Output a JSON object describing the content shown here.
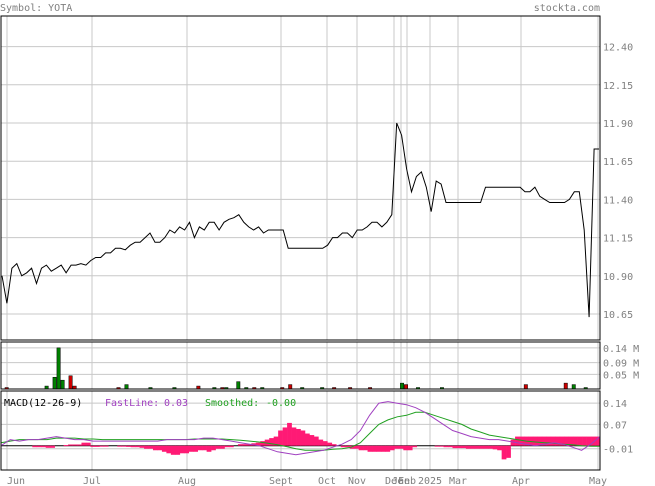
{
  "header": {
    "symbol_text": "Symbol: YOTA",
    "site": "stockta.com"
  },
  "colors": {
    "price_line": "#000000",
    "grid": "#c8c8c8",
    "frame": "#000000",
    "vol_up": "#008000",
    "vol_down": "#cc0000",
    "macd_fast": "#a040c0",
    "macd_smooth": "#20a020",
    "macd_hist": "#ff1a75"
  },
  "chart_data": [
    {
      "type": "line",
      "title": "",
      "x_tick_labels": [
        "Jun",
        "Jul",
        "Aug",
        "Sept",
        "Oct",
        "Nov",
        "Dec",
        "Jan",
        "Feb",
        "2025",
        "Mar",
        "Apr",
        "May"
      ],
      "y_ticks": [
        "12.40",
        "12.15",
        "11.90",
        "11.65",
        "11.40",
        "11.15",
        "10.90",
        "10.65"
      ],
      "ylim": [
        10.48,
        12.6
      ],
      "grid": true,
      "series": [
        {
          "values": [
            10.9,
            10.72,
            10.95,
            10.98,
            10.9,
            10.92,
            10.95,
            10.85,
            10.95,
            10.97,
            10.93,
            10.95,
            10.97,
            10.92,
            10.97,
            10.97,
            10.98,
            10.97,
            11,
            11.02,
            11.02,
            11.05,
            11.05,
            11.08,
            11.08,
            11.07,
            11.1,
            11.12,
            11.12,
            11.15,
            11.18,
            11.12,
            11.12,
            11.15,
            11.2,
            11.18,
            11.22,
            11.2,
            11.25,
            11.15,
            11.22,
            11.2,
            11.25,
            11.25,
            11.2,
            11.25,
            11.27,
            11.28,
            11.3,
            11.25,
            11.22,
            11.2,
            11.22,
            11.18,
            11.2,
            11.2,
            11.2,
            11.2,
            11.08,
            11.08,
            11.08,
            11.08,
            11.08,
            11.08,
            11.08,
            11.08,
            11.1,
            11.15,
            11.15,
            11.18,
            11.18,
            11.15,
            11.2,
            11.2,
            11.22,
            11.25,
            11.25,
            11.22,
            11.25,
            11.3,
            11.9,
            11.82,
            11.6,
            11.45,
            11.55,
            11.58,
            11.48,
            11.32,
            11.52,
            11.5,
            11.38,
            11.38,
            11.38,
            11.38,
            11.38,
            11.38,
            11.38,
            11.38,
            11.48,
            11.48,
            11.48,
            11.48,
            11.48,
            11.48,
            11.48,
            11.48,
            11.45,
            11.45,
            11.48,
            11.42,
            11.4,
            11.38,
            11.38,
            11.38,
            11.38,
            11.4,
            11.45,
            11.45,
            11.2,
            10.63,
            11.73,
            11.73
          ]
        }
      ]
    },
    {
      "type": "bar",
      "title": "",
      "y_ticks": [
        "0.14 M",
        "0.09 M",
        "0.05 M"
      ],
      "ylim": [
        0,
        0.16
      ],
      "bars": [
        {
          "i": 1,
          "v": 0.005,
          "dir": "down"
        },
        {
          "i": 11,
          "v": 0.01,
          "dir": "up"
        },
        {
          "i": 13,
          "v": 0.04,
          "dir": "up"
        },
        {
          "i": 14,
          "v": 0.14,
          "dir": "up"
        },
        {
          "i": 15,
          "v": 0.03,
          "dir": "up"
        },
        {
          "i": 17,
          "v": 0.045,
          "dir": "down"
        },
        {
          "i": 18,
          "v": 0.01,
          "dir": "down"
        },
        {
          "i": 29,
          "v": 0.005,
          "dir": "down"
        },
        {
          "i": 31,
          "v": 0.015,
          "dir": "up"
        },
        {
          "i": 37,
          "v": 0.005,
          "dir": "up"
        },
        {
          "i": 43,
          "v": 0.005,
          "dir": "up"
        },
        {
          "i": 49,
          "v": 0.01,
          "dir": "down"
        },
        {
          "i": 53,
          "v": 0.005,
          "dir": "up"
        },
        {
          "i": 55,
          "v": 0.005,
          "dir": "down"
        },
        {
          "i": 56,
          "v": 0.005,
          "dir": "up"
        },
        {
          "i": 59,
          "v": 0.025,
          "dir": "up"
        },
        {
          "i": 61,
          "v": 0.005,
          "dir": "up"
        },
        {
          "i": 63,
          "v": 0.005,
          "dir": "down"
        },
        {
          "i": 65,
          "v": 0.005,
          "dir": "up"
        },
        {
          "i": 70,
          "v": 0.005,
          "dir": "down"
        },
        {
          "i": 72,
          "v": 0.015,
          "dir": "down"
        },
        {
          "i": 75,
          "v": 0.005,
          "dir": "up"
        },
        {
          "i": 80,
          "v": 0.005,
          "dir": "up"
        },
        {
          "i": 83,
          "v": 0.005,
          "dir": "down"
        },
        {
          "i": 87,
          "v": 0.005,
          "dir": "down"
        },
        {
          "i": 92,
          "v": 0.005,
          "dir": "down"
        },
        {
          "i": 100,
          "v": 0.02,
          "dir": "up"
        },
        {
          "i": 101,
          "v": 0.015,
          "dir": "down"
        },
        {
          "i": 104,
          "v": 0.005,
          "dir": "up"
        },
        {
          "i": 110,
          "v": 0.005,
          "dir": "up"
        },
        {
          "i": 131,
          "v": 0.015,
          "dir": "down"
        },
        {
          "i": 141,
          "v": 0.02,
          "dir": "down"
        },
        {
          "i": 143,
          "v": 0.015,
          "dir": "up"
        },
        {
          "i": 146,
          "v": 0.005,
          "dir": "up"
        }
      ]
    },
    {
      "type": "line",
      "title": "MACD(12-26-9)",
      "legend": {
        "fast_label": "FastLine:",
        "fast_value": "0.03",
        "smooth_label": "Smoothed:",
        "smooth_value": "-0.00"
      },
      "y_ticks": [
        "0.14",
        "0.07",
        "-0.01"
      ],
      "ylim": [
        -0.08,
        0.18
      ],
      "series": [
        {
          "values": [
            0,
            0.02,
            0.015,
            0.02,
            0.02,
            0.025,
            0.03,
            0.025,
            0.02,
            0.02,
            0.015,
            0.015,
            0.015,
            0.015,
            0.015,
            0.015,
            0.015,
            0.015,
            0.02,
            0.02,
            0.02,
            0.02,
            0.025,
            0.025,
            0.02,
            0.015,
            0.01,
            0.005,
            0,
            -0.01,
            -0.02,
            -0.025,
            -0.03,
            -0.025,
            -0.02,
            -0.015,
            -0.005,
            0.005,
            0.02,
            0.05,
            0.1,
            0.14,
            0.145,
            0.14,
            0.135,
            0.125,
            0.11,
            0.09,
            0.07,
            0.05,
            0.04,
            0.03,
            0.025,
            0.02,
            0.02,
            0.015,
            0.01,
            0.005,
            0,
            0.005,
            0.01,
            0.005,
            -0.005,
            -0.015,
            0.005,
            0.03
          ]
        },
        {
          "values": [
            0.01,
            0.015,
            0.02,
            0.02,
            0.02,
            0.02,
            0.025,
            0.025,
            0.025,
            0.022,
            0.022,
            0.02,
            0.02,
            0.02,
            0.02,
            0.02,
            0.02,
            0.02,
            0.02,
            0.02,
            0.02,
            0.022,
            0.022,
            0.022,
            0.022,
            0.02,
            0.018,
            0.015,
            0.012,
            0.008,
            0.003,
            -0.003,
            -0.01,
            -0.015,
            -0.015,
            -0.015,
            -0.012,
            -0.01,
            -0.005,
            0.01,
            0.04,
            0.07,
            0.085,
            0.095,
            0.1,
            0.11,
            0.11,
            0.1,
            0.09,
            0.08,
            0.07,
            0.055,
            0.045,
            0.035,
            0.03,
            0.025,
            0.02,
            0.015,
            0.012,
            0.01,
            0.008,
            0.005,
            0.003,
            0,
            -0.002,
            -0.002
          ]
        },
        {
          "values": [
            0,
            0,
            0,
            0,
            0,
            0,
            0,
            -0.005,
            -0.005,
            -0.005,
            -0.007,
            -0.007,
            0,
            0,
            0.002,
            0.004,
            0.004,
            0.004,
            0.01,
            0.01,
            -0.004,
            -0.004,
            -0.002,
            -0.002,
            0,
            0,
            -0.002,
            -0.003,
            -0.004,
            -0.005,
            -0.005,
            -0.007,
            -0.01,
            -0.01,
            -0.015,
            -0.015,
            -0.02,
            -0.025,
            -0.03,
            -0.03,
            -0.025,
            -0.025,
            -0.02,
            -0.02,
            -0.015,
            -0.015,
            -0.02,
            -0.015,
            -0.01,
            -0.01,
            -0.005,
            -0.005,
            0,
            0.005,
            0.005,
            0.005,
            0.008,
            0.01,
            0.015,
            0.02,
            0.025,
            0.03,
            0.05,
            0.06,
            0.075,
            0.06,
            0.055,
            0.05,
            0.04,
            0.035,
            0.03,
            0.02,
            0.015,
            0.01,
            0.005,
            0,
            -0.005,
            -0.005,
            -0.01,
            -0.01,
            -0.015,
            -0.015,
            -0.02,
            -0.02,
            -0.02,
            -0.02,
            -0.02,
            -0.015,
            -0.01,
            -0.01,
            -0.015,
            -0.015,
            -0.005,
            0,
            0,
            0,
            0,
            -0.003,
            -0.003,
            -0.005,
            -0.005,
            -0.008,
            -0.008,
            -0.008,
            -0.01,
            -0.01,
            -0.01,
            -0.01,
            -0.01,
            -0.01,
            -0.012,
            -0.015,
            -0.045,
            -0.04,
            0.02,
            0.03,
            0.03,
            0.03,
            0.03,
            0.03,
            0.03,
            0.03,
            0.03,
            0.03,
            0.03,
            0.03,
            0.03,
            0.03,
            0.03,
            0.03,
            0.03,
            0.03,
            0.03,
            0.03
          ]
        }
      ]
    }
  ]
}
